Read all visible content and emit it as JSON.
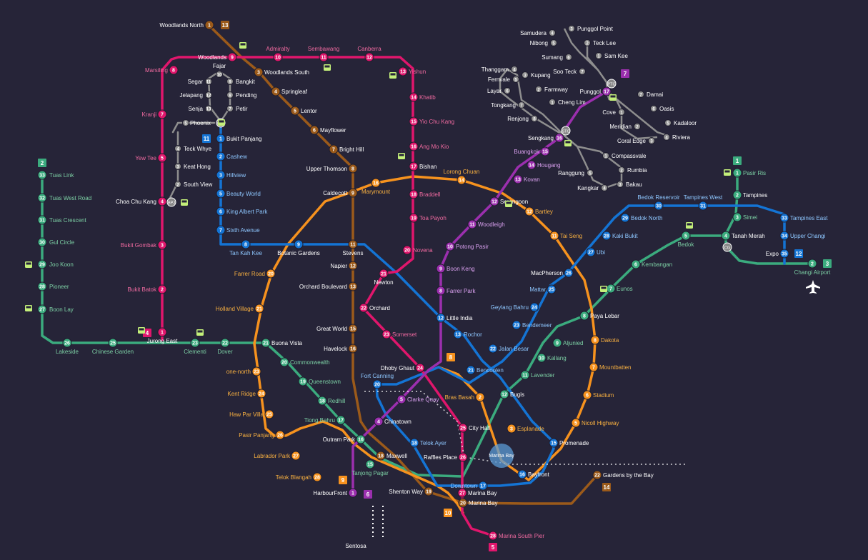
{
  "lines": {
    "ew": {
      "color": "#3bab7e",
      "label": "2"
    },
    "ns": {
      "color": "#e0166c",
      "label": "5"
    },
    "ne": {
      "color": "#9b2fae",
      "label": "6"
    },
    "cc": {
      "color": "#f6921e",
      "label": "8"
    },
    "dt": {
      "color": "#1474d4",
      "label": "12"
    },
    "te": {
      "color": "#9b5a1a",
      "label": "14"
    },
    "lrt": {
      "color": "#8e8e8e",
      "label": "11"
    }
  },
  "badges": [
    {
      "text": "13",
      "color": "#9b5a1a"
    },
    {
      "text": "11",
      "color": "#1474d4"
    },
    {
      "text": "7",
      "color": "#9b2fae"
    },
    {
      "text": "2",
      "color": "#3bab7e"
    },
    {
      "text": "1",
      "color": "#3bab7e"
    },
    {
      "text": "12",
      "color": "#1474d4"
    },
    {
      "text": "3",
      "color": "#3bab7e"
    },
    {
      "text": "4",
      "color": "#e0166c"
    },
    {
      "text": "8",
      "color": "#f6921e"
    },
    {
      "text": "9",
      "color": "#f6921e"
    },
    {
      "text": "6",
      "color": "#9b2fae"
    },
    {
      "text": "10",
      "color": "#f6921e"
    },
    {
      "text": "5",
      "color": "#e0166c"
    },
    {
      "text": "14",
      "color": "#9b5a1a"
    }
  ],
  "stations": [
    {
      "name": "Woodlands North",
      "code": "1",
      "line": "te"
    },
    {
      "name": "Woodlands",
      "code": "9",
      "line": "ns"
    },
    {
      "name": "Admiralty",
      "code": "10",
      "line": "ns"
    },
    {
      "name": "Sembawang",
      "code": "11",
      "line": "ns"
    },
    {
      "name": "Canberra",
      "code": "12",
      "line": "ns"
    },
    {
      "name": "Yishun",
      "code": "13",
      "line": "ns"
    },
    {
      "name": "Khatib",
      "code": "14",
      "line": "ns"
    },
    {
      "name": "Yio Chu Kang",
      "code": "15",
      "line": "ns"
    },
    {
      "name": "Ang Mo Kio",
      "code": "16",
      "line": "ns"
    },
    {
      "name": "Bishan",
      "code": "17",
      "line": "ns"
    },
    {
      "name": "Braddell",
      "code": "18",
      "line": "ns"
    },
    {
      "name": "Toa Payoh",
      "code": "19",
      "line": "ns"
    },
    {
      "name": "Novena",
      "code": "20",
      "line": "ns"
    },
    {
      "name": "Newton",
      "code": "21",
      "line": "ns"
    },
    {
      "name": "Orchard",
      "code": "22",
      "line": "ns"
    },
    {
      "name": "Somerset",
      "code": "23",
      "line": "ns"
    },
    {
      "name": "Dhoby Ghaut",
      "code": "24",
      "line": "ns"
    },
    {
      "name": "City Hall",
      "code": "25",
      "line": "ns"
    },
    {
      "name": "Raffles Place",
      "code": "26",
      "line": "ns"
    },
    {
      "name": "Marina Bay",
      "code": "27",
      "line": "ns"
    },
    {
      "name": "Marina South Pier",
      "code": "28",
      "line": "ns"
    },
    {
      "name": "Marsiling",
      "code": "8",
      "line": "ns"
    },
    {
      "name": "Kranji",
      "code": "7",
      "line": "ns"
    },
    {
      "name": "Yew Tee",
      "code": "5",
      "line": "ns"
    },
    {
      "name": "Choa Chu Kang",
      "code": "4",
      "line": "ns"
    },
    {
      "name": "Bukit Gombak",
      "code": "3",
      "line": "ns"
    },
    {
      "name": "Bukit Batok",
      "code": "2",
      "line": "ns"
    },
    {
      "name": "Jurong East",
      "code": "1",
      "line": "ns"
    },
    {
      "name": "Woodlands South",
      "code": "3",
      "line": "te"
    },
    {
      "name": "Springleaf",
      "code": "4",
      "line": "te"
    },
    {
      "name": "Lentor",
      "code": "5",
      "line": "te"
    },
    {
      "name": "Mayflower",
      "code": "6",
      "line": "te"
    },
    {
      "name": "Bright Hill",
      "code": "7",
      "line": "te"
    },
    {
      "name": "Upper Thomson",
      "code": "8",
      "line": "te"
    },
    {
      "name": "Caldecott",
      "code": "9",
      "line": "te"
    },
    {
      "name": "Stevens",
      "code": "11",
      "line": "te"
    },
    {
      "name": "Napier",
      "code": "12",
      "line": "te"
    },
    {
      "name": "Orchard Boulevard",
      "code": "13",
      "line": "te"
    },
    {
      "name": "Great World",
      "code": "15",
      "line": "te"
    },
    {
      "name": "Havelock",
      "code": "16",
      "line": "te"
    },
    {
      "name": "Maxwell",
      "code": "18",
      "line": "te"
    },
    {
      "name": "Shenton Way",
      "code": "19",
      "line": "te"
    },
    {
      "name": "Marina Bay",
      "code": "20",
      "line": "te"
    },
    {
      "name": "Gardens by the Bay",
      "code": "22",
      "line": "te"
    },
    {
      "name": "Tuas Link",
      "code": "33",
      "line": "ew"
    },
    {
      "name": "Tuas West Road",
      "code": "32",
      "line": "ew"
    },
    {
      "name": "Tuas Crescent",
      "code": "31",
      "line": "ew"
    },
    {
      "name": "Gul Circle",
      "code": "30",
      "line": "ew"
    },
    {
      "name": "Joo Koon",
      "code": "29",
      "line": "ew"
    },
    {
      "name": "Pioneer",
      "code": "28",
      "line": "ew"
    },
    {
      "name": "Boon Lay",
      "code": "27",
      "line": "ew"
    },
    {
      "name": "Lakeside",
      "code": "26",
      "line": "ew"
    },
    {
      "name": "Chinese Garden",
      "code": "25",
      "line": "ew"
    },
    {
      "name": "Clementi",
      "code": "23",
      "line": "ew"
    },
    {
      "name": "Dover",
      "code": "22",
      "line": "ew"
    },
    {
      "name": "Buona Vista",
      "code": "21",
      "line": "ew"
    },
    {
      "name": "Commonwealth",
      "code": "20",
      "line": "ew"
    },
    {
      "name": "Queenstown",
      "code": "19",
      "line": "ew"
    },
    {
      "name": "Redhill",
      "code": "18",
      "line": "ew"
    },
    {
      "name": "Tiong Bahru",
      "code": "17",
      "line": "ew"
    },
    {
      "name": "Outram Park",
      "code": "16",
      "line": "ew"
    },
    {
      "name": "Tanjong Pagar",
      "code": "15",
      "line": "ew"
    },
    {
      "name": "Bugis",
      "code": "12",
      "line": "ew"
    },
    {
      "name": "Lavender",
      "code": "11",
      "line": "ew"
    },
    {
      "name": "Kallang",
      "code": "10",
      "line": "ew"
    },
    {
      "name": "Aljunied",
      "code": "9",
      "line": "ew"
    },
    {
      "name": "Paya Lebar",
      "code": "8",
      "line": "ew"
    },
    {
      "name": "Eunos",
      "code": "7",
      "line": "ew"
    },
    {
      "name": "Kembangan",
      "code": "6",
      "line": "ew"
    },
    {
      "name": "Bedok",
      "code": "5",
      "line": "ew"
    },
    {
      "name": "Tanah Merah",
      "code": "4",
      "line": "ew"
    },
    {
      "name": "Simei",
      "code": "3",
      "line": "ew"
    },
    {
      "name": "Tampines",
      "code": "2",
      "line": "ew"
    },
    {
      "name": "Pasir Ris",
      "code": "1",
      "line": "ew"
    },
    {
      "name": "Expo",
      "code": "35",
      "line": "dt"
    },
    {
      "name": "Changi Airport",
      "code": "2",
      "line": "ew"
    },
    {
      "name": "Bukit Panjang",
      "code": "1",
      "line": "dt"
    },
    {
      "name": "Cashew",
      "code": "2",
      "line": "dt"
    },
    {
      "name": "Hillview",
      "code": "3",
      "line": "dt"
    },
    {
      "name": "Beauty World",
      "code": "5",
      "line": "dt"
    },
    {
      "name": "King Albert Park",
      "code": "6",
      "line": "dt"
    },
    {
      "name": "Sixth Avenue",
      "code": "7",
      "line": "dt"
    },
    {
      "name": "Tan Kah Kee",
      "code": "8",
      "line": "dt"
    },
    {
      "name": "Botanic Gardens",
      "code": "9",
      "line": "dt"
    },
    {
      "name": "Little India",
      "code": "12",
      "line": "dt"
    },
    {
      "name": "Rochor",
      "code": "13",
      "line": "dt"
    },
    {
      "name": "Bendemeer",
      "code": "23",
      "line": "dt"
    },
    {
      "name": "Geylang Bahru",
      "code": "24",
      "line": "dt"
    },
    {
      "name": "Mattar",
      "code": "25",
      "line": "dt"
    },
    {
      "name": "MacPherson",
      "code": "26",
      "line": "dt"
    },
    {
      "name": "Ubi",
      "code": "27",
      "line": "dt"
    },
    {
      "name": "Kaki Bukit",
      "code": "28",
      "line": "dt"
    },
    {
      "name": "Bedok North",
      "code": "29",
      "line": "dt"
    },
    {
      "name": "Bedok Reservoir",
      "code": "30",
      "line": "dt"
    },
    {
      "name": "Tampines West",
      "code": "31",
      "line": "dt"
    },
    {
      "name": "Tampines East",
      "code": "33",
      "line": "dt"
    },
    {
      "name": "Upper Changi",
      "code": "34",
      "line": "dt"
    },
    {
      "name": "Jalan Besar",
      "code": "22",
      "line": "dt"
    },
    {
      "name": "Bencoolen",
      "code": "21",
      "line": "dt"
    },
    {
      "name": "Fort Canning",
      "code": "20",
      "line": "dt"
    },
    {
      "name": "Telok Ayer",
      "code": "18",
      "line": "dt"
    },
    {
      "name": "Downtown",
      "code": "17",
      "line": "dt"
    },
    {
      "name": "Bayfront",
      "code": "16",
      "line": "dt"
    },
    {
      "name": "Promenade",
      "code": "15",
      "line": "dt"
    },
    {
      "name": "Punggol",
      "code": "17",
      "line": "ne"
    },
    {
      "name": "Sengkang",
      "code": "16",
      "line": "ne"
    },
    {
      "name": "Buangkok",
      "code": "15",
      "line": "ne"
    },
    {
      "name": "Hougang",
      "code": "14",
      "line": "ne"
    },
    {
      "name": "Kovan",
      "code": "13",
      "line": "ne"
    },
    {
      "name": "Serangoon",
      "code": "12",
      "line": "ne"
    },
    {
      "name": "Woodleigh",
      "code": "11",
      "line": "ne"
    },
    {
      "name": "Potong Pasir",
      "code": "10",
      "line": "ne"
    },
    {
      "name": "Boon Keng",
      "code": "9",
      "line": "ne"
    },
    {
      "name": "Farrer Park",
      "code": "8",
      "line": "ne"
    },
    {
      "name": "Clarke Quay",
      "code": "5",
      "line": "ne"
    },
    {
      "name": "Chinatown",
      "code": "4",
      "line": "ne"
    },
    {
      "name": "HarbourFront",
      "code": "1",
      "line": "ne"
    },
    {
      "name": "Marymount",
      "code": "16",
      "line": "cc"
    },
    {
      "name": "Lorong Chuan",
      "code": "14",
      "line": "cc"
    },
    {
      "name": "Bartley",
      "code": "12",
      "line": "cc"
    },
    {
      "name": "Tai Seng",
      "code": "11",
      "line": "cc"
    },
    {
      "name": "Dakota",
      "code": "8",
      "line": "cc"
    },
    {
      "name": "Mountbatten",
      "code": "7",
      "line": "cc"
    },
    {
      "name": "Stadium",
      "code": "6",
      "line": "cc"
    },
    {
      "name": "Nicoll Highway",
      "code": "5",
      "line": "cc"
    },
    {
      "name": "Esplanade",
      "code": "3",
      "line": "cc"
    },
    {
      "name": "Bras Basah",
      "code": "2",
      "line": "cc"
    },
    {
      "name": "Farrer Road",
      "code": "20",
      "line": "cc"
    },
    {
      "name": "Holland Village",
      "code": "21",
      "line": "cc"
    },
    {
      "name": "one-north",
      "code": "23",
      "line": "cc"
    },
    {
      "name": "Kent Ridge",
      "code": "24",
      "line": "cc"
    },
    {
      "name": "Haw Par Villa",
      "code": "25",
      "line": "cc"
    },
    {
      "name": "Pasir Panjang",
      "code": "26",
      "line": "cc"
    },
    {
      "name": "Labrador Park",
      "code": "27",
      "line": "cc"
    },
    {
      "name": "Telok Blangah",
      "code": "28",
      "line": "cc"
    },
    {
      "name": "Fajar",
      "code": "10",
      "line": "lrt"
    },
    {
      "name": "Segar",
      "code": "11",
      "line": "lrt"
    },
    {
      "name": "Jelapang",
      "code": "12",
      "line": "lrt"
    },
    {
      "name": "Senja",
      "code": "13",
      "line": "lrt"
    },
    {
      "name": "Bangkit",
      "code": "9",
      "line": "lrt"
    },
    {
      "name": "Pending",
      "code": "8",
      "line": "lrt"
    },
    {
      "name": "Petir",
      "code": "7",
      "line": "lrt"
    },
    {
      "name": "Phoenix",
      "code": "5",
      "line": "lrt"
    },
    {
      "name": "Teck Whye",
      "code": "4",
      "line": "lrt"
    },
    {
      "name": "Keat Hong",
      "code": "3",
      "line": "lrt"
    },
    {
      "name": "South View",
      "code": "2",
      "line": "lrt"
    },
    {
      "name": "Samudera",
      "code": "4",
      "line": "lrt"
    },
    {
      "name": "Nibong",
      "code": "5",
      "line": "lrt"
    },
    {
      "name": "Sumang",
      "code": "6",
      "line": "lrt"
    },
    {
      "name": "Soo Teck",
      "code": "7",
      "line": "lrt"
    },
    {
      "name": "Punggol Point",
      "code": "3",
      "line": "lrt"
    },
    {
      "name": "Teck Lee",
      "code": "2",
      "line": "lrt"
    },
    {
      "name": "Sam Kee",
      "code": "1",
      "line": "lrt"
    },
    {
      "name": "Damai",
      "code": "7",
      "line": "lrt"
    },
    {
      "name": "Oasis",
      "code": "6",
      "line": "lrt"
    },
    {
      "name": "Kadaloor",
      "code": "5",
      "line": "lrt"
    },
    {
      "name": "Riviera",
      "code": "4",
      "line": "lrt"
    },
    {
      "name": "Coral Edge",
      "code": "3",
      "line": "lrt"
    },
    {
      "name": "Meridian",
      "code": "2",
      "line": "lrt"
    },
    {
      "name": "Cove",
      "code": "1",
      "line": "lrt"
    },
    {
      "name": "Thanggam",
      "code": "4",
      "line": "lrt"
    },
    {
      "name": "Kupang",
      "code": "3",
      "line": "lrt"
    },
    {
      "name": "Fernvale",
      "code": "5",
      "line": "lrt"
    },
    {
      "name": "Farmway",
      "code": "2",
      "line": "lrt"
    },
    {
      "name": "Layar",
      "code": "6",
      "line": "lrt"
    },
    {
      "name": "Cheng Lim",
      "code": "1",
      "line": "lrt"
    },
    {
      "name": "Tongkang",
      "code": "7",
      "line": "lrt"
    },
    {
      "name": "Renjong",
      "code": "8",
      "line": "lrt"
    },
    {
      "name": "Compassvale",
      "code": "1",
      "line": "lrt"
    },
    {
      "name": "Rumbia",
      "code": "2",
      "line": "lrt"
    },
    {
      "name": "Bakau",
      "code": "3",
      "line": "lrt"
    },
    {
      "name": "Kangkar",
      "code": "4",
      "line": "lrt"
    },
    {
      "name": "Ranggung",
      "code": "5",
      "line": "lrt"
    },
    {
      "name": "Sentosa",
      "code": "",
      "line": "other"
    }
  ],
  "hub_labels": {
    "bukit_panjang": "BPJ",
    "choa_chu_kang": "BPJ",
    "punggol": "PTC",
    "sengkang": "STC",
    "tanah_merah": "CG"
  },
  "landmark": {
    "marina_bay": "Marina Bay"
  }
}
